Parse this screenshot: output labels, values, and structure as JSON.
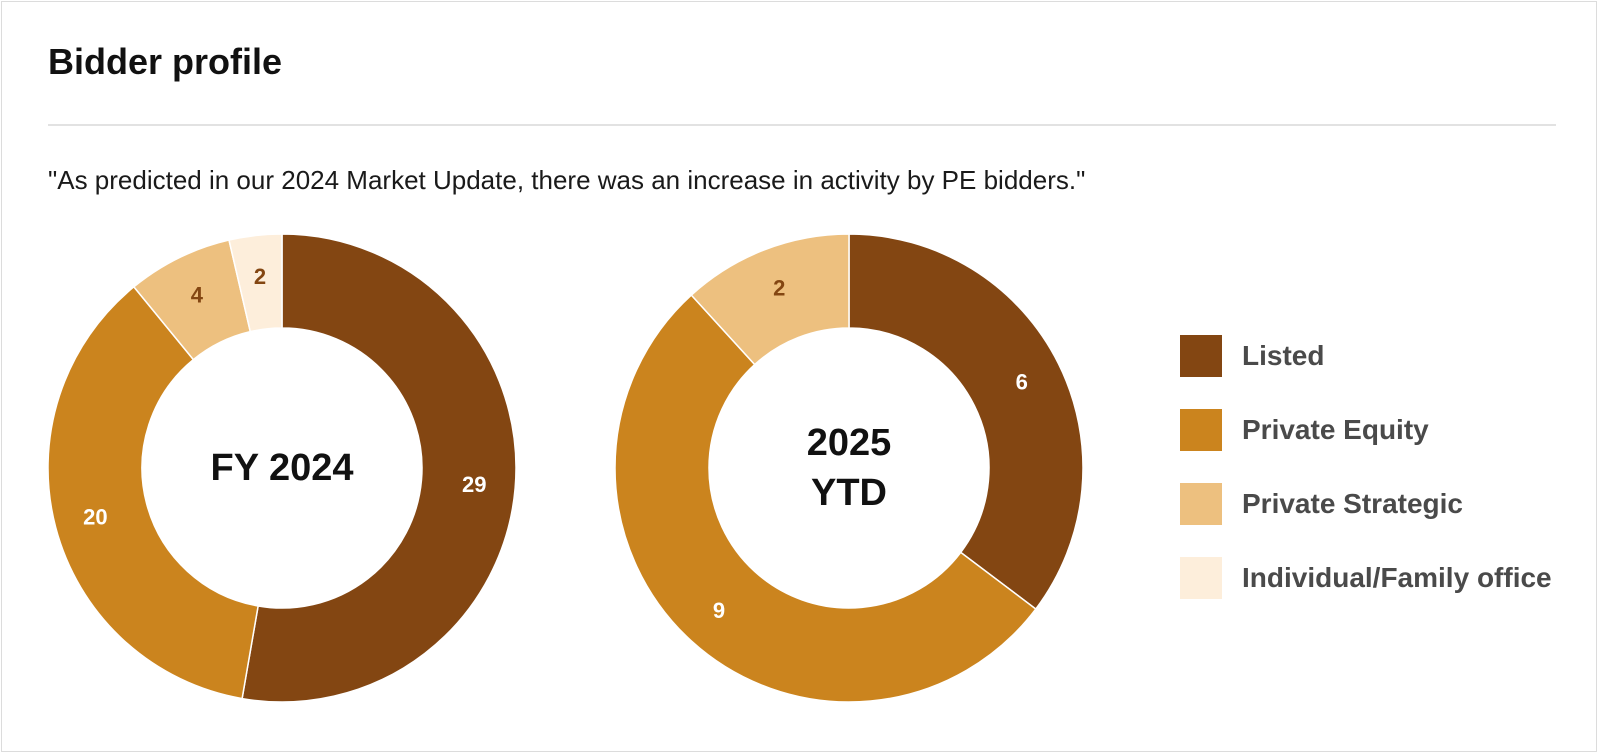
{
  "header": {
    "title": "Bidder profile",
    "subtitle": "\"As predicted in our 2024 Market Update, there was an increase in activity by PE bidders.\""
  },
  "colors": {
    "listed": "#834612",
    "private_equity": "#cb841e",
    "private_strategic": "#edc07f",
    "individual_family_office": "#fdeedb"
  },
  "legend": [
    {
      "label": "Listed",
      "color_key": "listed"
    },
    {
      "label": "Private Equity",
      "color_key": "private_equity"
    },
    {
      "label": "Private Strategic",
      "color_key": "private_strategic"
    },
    {
      "label": "Individual/Family office",
      "color_key": "individual_family_office"
    }
  ],
  "chart_data": [
    {
      "type": "pie",
      "title": "FY 2024",
      "center_label": [
        "FY 2024"
      ],
      "categories": [
        "Listed",
        "Private Equity",
        "Private Strategic",
        "Individual/Family office"
      ],
      "values": [
        29,
        20,
        4,
        2
      ],
      "label_colors": [
        "#ffffff",
        "#ffffff",
        "#834612",
        "#834612"
      ]
    },
    {
      "type": "pie",
      "title": "2025 YTD",
      "center_label": [
        "2025",
        "YTD"
      ],
      "categories": [
        "Listed",
        "Private Equity",
        "Private Strategic",
        "Individual/Family office"
      ],
      "values": [
        6,
        9,
        2,
        0
      ],
      "label_colors": [
        "#ffffff",
        "#ffffff",
        "#834612",
        "#834612"
      ]
    }
  ]
}
